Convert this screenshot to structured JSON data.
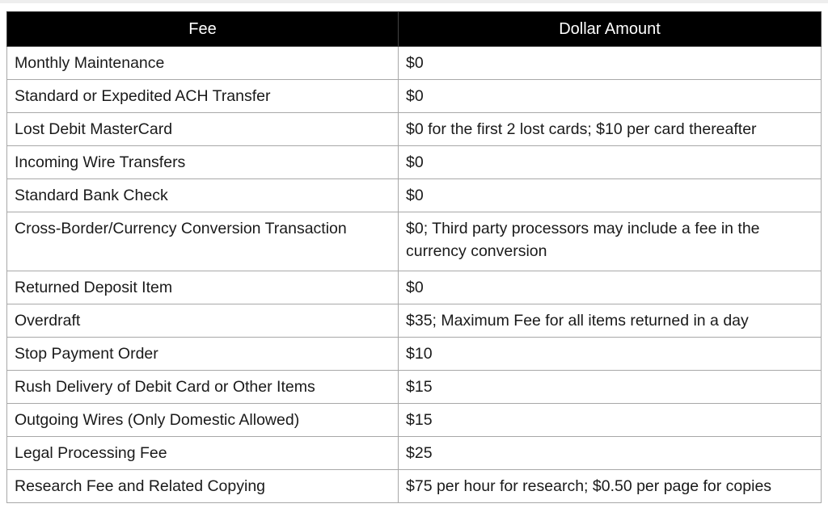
{
  "table": {
    "headers": [
      "Fee",
      "Dollar Amount"
    ],
    "rows": [
      {
        "fee": "Monthly Maintenance",
        "amount": "$0"
      },
      {
        "fee": "Standard or Expedited ACH Transfer",
        "amount": "$0"
      },
      {
        "fee": "Lost Debit MasterCard",
        "amount": "$0 for the first 2 lost cards; $10 per card thereafter"
      },
      {
        "fee": "Incoming Wire Transfers",
        "amount": "$0"
      },
      {
        "fee": "Standard Bank Check",
        "amount": "$0"
      },
      {
        "fee": "Cross-Border/Currency Conversion Transaction",
        "amount": "$0; Third party processors may include a fee in the currency conversion"
      },
      {
        "fee": "Returned Deposit Item",
        "amount": "$0"
      },
      {
        "fee": "Overdraft",
        "amount": "$35; Maximum Fee for all items returned in a day"
      },
      {
        "fee": "Stop Payment Order",
        "amount": "$10"
      },
      {
        "fee": "Rush Delivery of Debit Card or Other Items",
        "amount": "$15"
      },
      {
        "fee": "Outgoing Wires (Only Domestic Allowed)",
        "amount": "$15"
      },
      {
        "fee": "Legal Processing Fee",
        "amount": "$25"
      },
      {
        "fee": "Research Fee and Related Copying",
        "amount": "$75 per hour for research; $0.50 per page for copies"
      }
    ]
  },
  "colors": {
    "header_bg": "#000000",
    "header_text": "#ffffff",
    "border": "#a8a8a8"
  }
}
